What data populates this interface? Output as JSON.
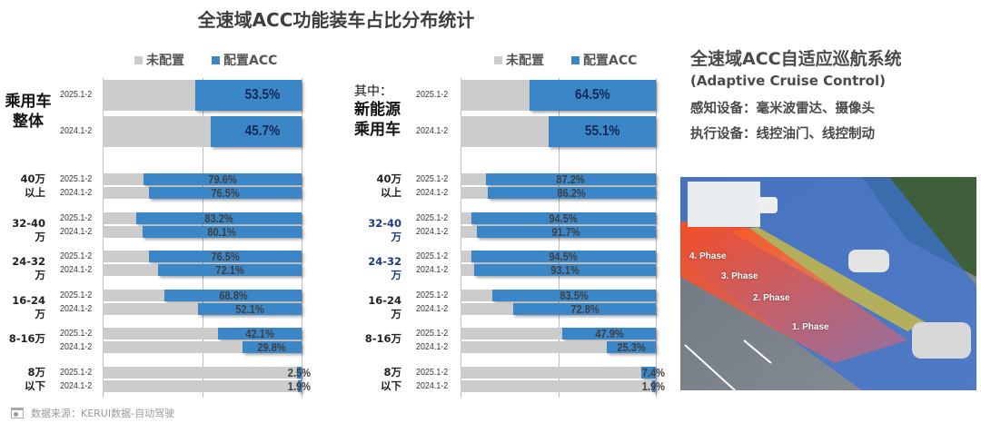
{
  "title": "全速域ACC功能装车占比分布统计",
  "legend": {
    "not_configured": "未配置",
    "configured": "配置ACC",
    "colors": {
      "not_configured": "#cccccc",
      "configured": "#3a86c6"
    }
  },
  "chart_data": [
    {
      "type": "bar",
      "stacked": true,
      "orientation": "horizontal",
      "title": "乘用车整体",
      "group_label_lines": [
        "乘用车",
        "整体"
      ],
      "xlim": [
        0,
        100
      ],
      "series": [
        {
          "name": "配置ACC",
          "unit": "%"
        },
        {
          "name": "未配置",
          "unit": "%"
        }
      ],
      "overall": [
        {
          "period": "2025.1-2",
          "acc": 53.5,
          "label": "53.5%"
        },
        {
          "period": "2024.1-2",
          "acc": 45.7,
          "label": "45.7%"
        }
      ],
      "groups": [
        {
          "label_lines": [
            "40万",
            "以上"
          ],
          "highlight": false,
          "rows": [
            {
              "period": "2025.1-2",
              "acc": 79.6,
              "label": "79.6%"
            },
            {
              "period": "2024.1-2",
              "acc": 76.5,
              "label": "76.5%"
            }
          ]
        },
        {
          "label_lines": [
            "32-40万"
          ],
          "highlight": false,
          "rows": [
            {
              "period": "2025.1-2",
              "acc": 83.2,
              "label": "83.2%"
            },
            {
              "period": "2024.1-2",
              "acc": 80.1,
              "label": "80.1%"
            }
          ]
        },
        {
          "label_lines": [
            "24-32万"
          ],
          "highlight": false,
          "rows": [
            {
              "period": "2025.1-2",
              "acc": 76.5,
              "label": "76.5%"
            },
            {
              "period": "2024.1-2",
              "acc": 72.1,
              "label": "72.1%"
            }
          ]
        },
        {
          "label_lines": [
            "16-24万"
          ],
          "highlight": false,
          "rows": [
            {
              "period": "2025.1-2",
              "acc": 68.8,
              "label": "68.8%"
            },
            {
              "period": "2024.1-2",
              "acc": 52.1,
              "label": "52.1%"
            }
          ]
        },
        {
          "label_lines": [
            "8-16万"
          ],
          "highlight": false,
          "rows": [
            {
              "period": "2025.1-2",
              "acc": 42.1,
              "label": "42.1%"
            },
            {
              "period": "2024.1-2",
              "acc": 29.8,
              "label": "29.8%"
            }
          ]
        },
        {
          "label_lines": [
            "8万",
            "以下"
          ],
          "highlight": false,
          "rows": [
            {
              "period": "2025.1-2",
              "acc": 2.5,
              "label": "2.5%"
            },
            {
              "period": "2024.1-2",
              "acc": 1.9,
              "label": "1.9%"
            }
          ]
        }
      ]
    },
    {
      "type": "bar",
      "stacked": true,
      "orientation": "horizontal",
      "title": "其中：新能源乘用车",
      "group_label_lines": [
        "其中：",
        "新能源",
        "乘用车"
      ],
      "xlim": [
        0,
        100
      ],
      "series": [
        {
          "name": "配置ACC",
          "unit": "%"
        },
        {
          "name": "未配置",
          "unit": "%"
        }
      ],
      "overall": [
        {
          "period": "2025.1-2",
          "acc": 64.5,
          "label": "64.5%"
        },
        {
          "period": "2024.1-2",
          "acc": 55.1,
          "label": "55.1%"
        }
      ],
      "groups": [
        {
          "label_lines": [
            "40万",
            "以上"
          ],
          "highlight": false,
          "rows": [
            {
              "period": "2025.1-2",
              "acc": 87.2,
              "label": "87.2%"
            },
            {
              "period": "2024.1-2",
              "acc": 86.2,
              "label": "86.2%"
            }
          ]
        },
        {
          "label_lines": [
            "32-40万"
          ],
          "highlight": true,
          "rows": [
            {
              "period": "2025.1-2",
              "acc": 94.5,
              "label": "94.5%"
            },
            {
              "period": "2024.1-2",
              "acc": 91.7,
              "label": "91.7%"
            }
          ]
        },
        {
          "label_lines": [
            "24-32万"
          ],
          "highlight": true,
          "rows": [
            {
              "period": "2025.1-2",
              "acc": 94.5,
              "label": "94.5%"
            },
            {
              "period": "2024.1-2",
              "acc": 93.1,
              "label": "93.1%"
            }
          ]
        },
        {
          "label_lines": [
            "16-24万"
          ],
          "highlight": false,
          "rows": [
            {
              "period": "2025.1-2",
              "acc": 83.5,
              "label": "83.5%"
            },
            {
              "period": "2024.1-2",
              "acc": 72.8,
              "label": "72.8%"
            }
          ]
        },
        {
          "label_lines": [
            "8-16万"
          ],
          "highlight": false,
          "rows": [
            {
              "period": "2025.1-2",
              "acc": 47.9,
              "label": "47.9%"
            },
            {
              "period": "2024.1-2",
              "acc": 25.3,
              "label": "25.3%"
            }
          ]
        },
        {
          "label_lines": [
            "8万",
            "以下"
          ],
          "highlight": false,
          "rows": [
            {
              "period": "2025.1-2",
              "acc": 7.4,
              "label": "7.4%"
            },
            {
              "period": "2024.1-2",
              "acc": 1.9,
              "label": "1.9%"
            }
          ]
        }
      ]
    }
  ],
  "info_panel": {
    "title": "全速域ACC自适应巡航系统",
    "subtitle": "(Adaptive Cruise Control)",
    "sensing": "感知设备：毫米波雷达、摄像头",
    "actuation": "执行设备：线控油门、线控制动",
    "illustration": {
      "phases": [
        "4. Phase",
        "3. Phase",
        "2. Phase",
        "1. Phase"
      ]
    }
  },
  "footer": {
    "icon": "calendar-icon",
    "source": "数据来源：KERUI数据-自动驾驶"
  }
}
